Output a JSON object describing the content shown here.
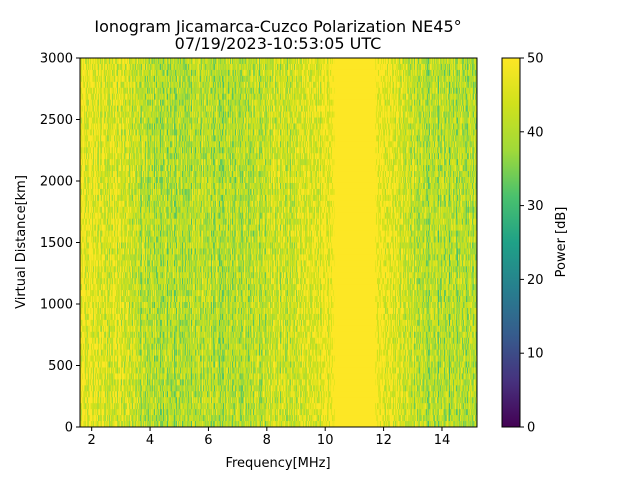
{
  "chart_data": {
    "type": "heatmap",
    "title": "Ionogram Jicamarca-Cuzco Polarization NE45°",
    "subtitle": "07/19/2023-10:53:05 UTC",
    "xlabel": "Frequency[MHz]",
    "ylabel": "Virtual Distance[km]",
    "xlim": [
      1.6,
      15.2
    ],
    "ylim": [
      0,
      3000
    ],
    "xticks": [
      2,
      4,
      6,
      8,
      10,
      12,
      14
    ],
    "yticks": [
      0,
      500,
      1000,
      1500,
      2000,
      2500,
      3000
    ],
    "colorbar": {
      "label": "Power [dB]",
      "range": [
        0,
        50
      ],
      "ticks": [
        0,
        10,
        20,
        30,
        40,
        50
      ],
      "colormap": "viridis"
    },
    "frequency_profile": {
      "x": [
        1.6,
        2.0,
        2.5,
        3.0,
        3.5,
        4.0,
        4.5,
        5.0,
        5.5,
        6.0,
        6.5,
        7.0,
        7.5,
        8.0,
        8.5,
        9.0,
        9.5,
        10.0,
        10.4,
        10.8,
        11.5,
        11.9,
        12.3,
        12.8,
        13.3,
        13.8,
        14.3,
        14.8,
        15.2
      ],
      "mean_power_db": [
        49,
        47,
        45,
        44,
        42,
        40,
        40,
        40,
        40,
        41,
        40,
        40,
        41,
        42,
        43,
        44,
        45,
        47,
        50,
        50,
        50,
        49,
        46,
        44,
        41,
        40,
        39,
        40,
        41
      ]
    }
  }
}
